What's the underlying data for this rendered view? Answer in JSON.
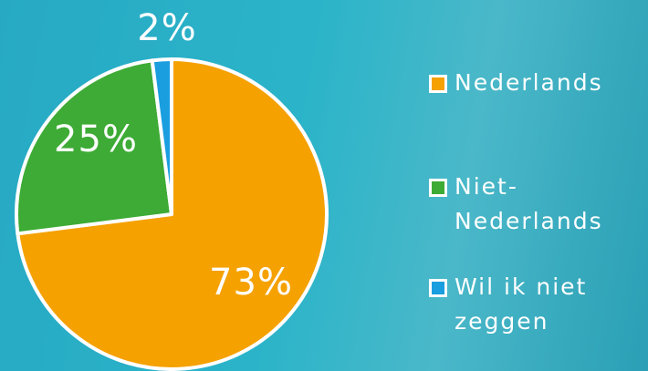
{
  "chart_data": {
    "type": "pie",
    "series": [
      {
        "name": "Nederlands",
        "color": "#f5a100"
      },
      {
        "name": "Niet-Nederlands",
        "color": "#3dab35"
      },
      {
        "name": "Wil ik niet zeggen",
        "color": "#1a9ee0"
      }
    ],
    "values": [
      73,
      25,
      2
    ],
    "value_labels": [
      "73%",
      "25%",
      "2%"
    ]
  }
}
